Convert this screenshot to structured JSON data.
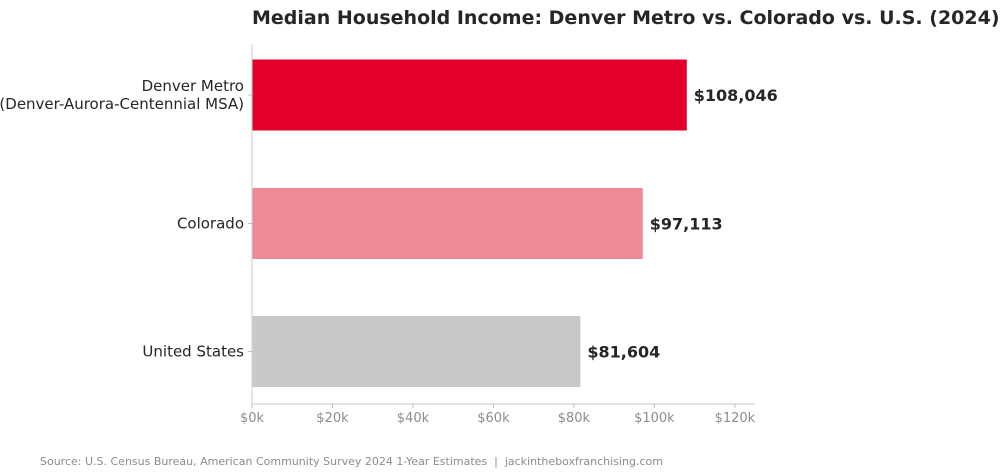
{
  "chart_data": {
    "type": "bar",
    "orientation": "horizontal",
    "title": "Median Household Income: Denver Metro vs. Colorado vs. U.S. (2024)",
    "categories": [
      [
        "Denver Metro",
        "(Denver-Aurora-Centennial MSA)"
      ],
      [
        "Colorado"
      ],
      [
        "United States"
      ]
    ],
    "values": [
      108046,
      97113,
      81604
    ],
    "value_labels": [
      "$108,046",
      "$97,113",
      "$81,604"
    ],
    "bar_colors": [
      "#e4002b",
      "#ee8996",
      "#c8c8c8"
    ],
    "xlim": [
      0,
      125000
    ],
    "xticks": [
      0,
      20000,
      40000,
      60000,
      80000,
      100000,
      120000
    ],
    "xtick_labels": [
      "$0k",
      "$20k",
      "$40k",
      "$60k",
      "$80k",
      "$100k",
      "$120k"
    ],
    "xlabel": "",
    "ylabel": "",
    "grid": false,
    "legend": "none"
  },
  "source": "Source: U.S. Census Bureau, American Community Survey 2024 1-Year Estimates  |  jackintheboxfranchising.com"
}
